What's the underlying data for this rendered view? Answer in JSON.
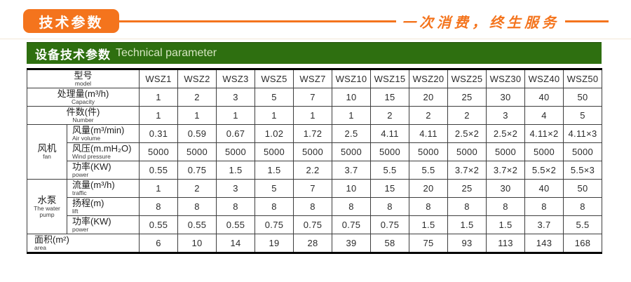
{
  "page": {
    "banner_label": "技术参数",
    "slogan": "一次消费，终生服务",
    "header_zh": "设备技术参数",
    "header_en": "Technical parameter"
  },
  "colors": {
    "accent_orange": "#f4741d",
    "header_green": "#2e6f10",
    "table_border": "#3d3d3d"
  },
  "chart_data": {
    "type": "table",
    "title": "设备技术参数 Technical parameter",
    "header": {
      "label_zh": "型号",
      "label_en": "model",
      "models": [
        "WSZ1",
        "WSZ2",
        "WSZ3",
        "WSZ5",
        "WSZ7",
        "WSZ10",
        "WSZ15",
        "WSZ20",
        "WSZ25",
        "WSZ30",
        "WSZ40",
        "WSZ50"
      ]
    },
    "groups": {
      "fan": {
        "zh": "风机",
        "en": "fan"
      },
      "pump": {
        "zh": "水泵",
        "en": "The water pump"
      }
    },
    "rows": [
      {
        "group": null,
        "zh": "处理量(m³/h)",
        "en": "Capacity",
        "align": "center",
        "values": [
          "1",
          "2",
          "3",
          "5",
          "7",
          "10",
          "15",
          "20",
          "25",
          "30",
          "40",
          "50"
        ]
      },
      {
        "group": null,
        "zh": "件数(件)",
        "en": "Number",
        "align": "center",
        "values": [
          "1",
          "1",
          "1",
          "1",
          "1",
          "1",
          "2",
          "2",
          "2",
          "3",
          "4",
          "5"
        ]
      },
      {
        "group": "fan",
        "zh": "风量(m³/min)",
        "en": "Air volume",
        "align": "left",
        "values": [
          "0.31",
          "0.59",
          "0.67",
          "1.02",
          "1.72",
          "2.5",
          "4.11",
          "4.11",
          "2.5×2",
          "2.5×2",
          "4.11×2",
          "4.11×3"
        ]
      },
      {
        "group": "fan",
        "zh": "风压(m.mH₂O)",
        "en": "Wind pressure",
        "align": "left",
        "values": [
          "5000",
          "5000",
          "5000",
          "5000",
          "5000",
          "5000",
          "5000",
          "5000",
          "5000",
          "5000",
          "5000",
          "5000"
        ]
      },
      {
        "group": "fan",
        "zh": "功率(KW)",
        "en": "power",
        "align": "left",
        "values": [
          "0.55",
          "0.75",
          "1.5",
          "1.5",
          "2.2",
          "3.7",
          "5.5",
          "5.5",
          "3.7×2",
          "3.7×2",
          "5.5×2",
          "5.5×3"
        ]
      },
      {
        "group": "pump",
        "zh": "流量(m³/h)",
        "en": "traffic",
        "align": "left",
        "values": [
          "1",
          "2",
          "3",
          "5",
          "7",
          "10",
          "15",
          "20",
          "25",
          "30",
          "40",
          "50"
        ]
      },
      {
        "group": "pump",
        "zh": "扬程(m)",
        "en": "lift",
        "align": "left",
        "values": [
          "8",
          "8",
          "8",
          "8",
          "8",
          "8",
          "8",
          "8",
          "8",
          "8",
          "8",
          "8"
        ]
      },
      {
        "group": "pump",
        "zh": "功率(KW)",
        "en": "power",
        "align": "left",
        "values": [
          "0.55",
          "0.55",
          "0.55",
          "0.75",
          "0.75",
          "0.75",
          "0.75",
          "1.5",
          "1.5",
          "1.5",
          "3.7",
          "5.5"
        ]
      },
      {
        "group": null,
        "zh": "面积(m²)",
        "en": "area",
        "align": "leftfull",
        "values": [
          "6",
          "10",
          "14",
          "19",
          "28",
          "39",
          "58",
          "75",
          "93",
          "113",
          "143",
          "168"
        ]
      }
    ],
    "layout": {
      "label_col_widths": [
        57,
        103
      ],
      "data_col_width": 55
    }
  }
}
